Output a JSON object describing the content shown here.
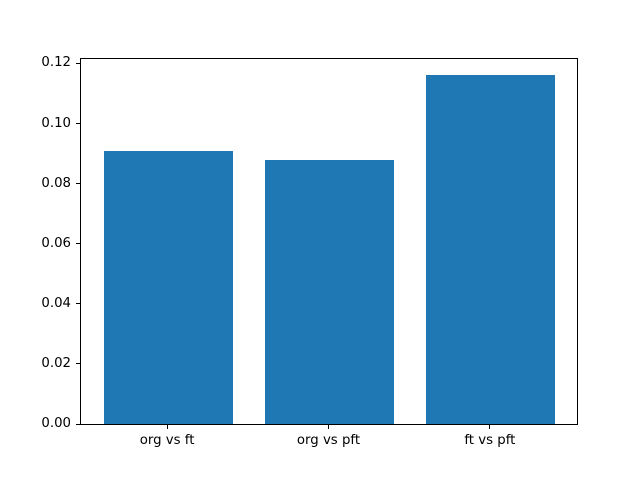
{
  "figure": {
    "background_color": "#ffffff",
    "spine_color": "#000000",
    "tick_label_color": "#000000"
  },
  "chart_data": {
    "type": "bar",
    "title": "",
    "xlabel": "",
    "ylabel": "",
    "categories": [
      "org vs ft",
      "org vs pft",
      "ft vs pft"
    ],
    "values": [
      0.091,
      0.088,
      0.116
    ],
    "bar_color": "#1f77b4",
    "bar_width": 0.8,
    "xlim": [
      -0.54,
      2.54
    ],
    "ylim": [
      0,
      0.1218
    ],
    "yticks": [
      0.0,
      0.02,
      0.04,
      0.06,
      0.08,
      0.1,
      0.12
    ],
    "ytick_labels": [
      "0.00",
      "0.02",
      "0.04",
      "0.06",
      "0.08",
      "0.10",
      "0.12"
    ],
    "grid": false,
    "legend": null
  }
}
